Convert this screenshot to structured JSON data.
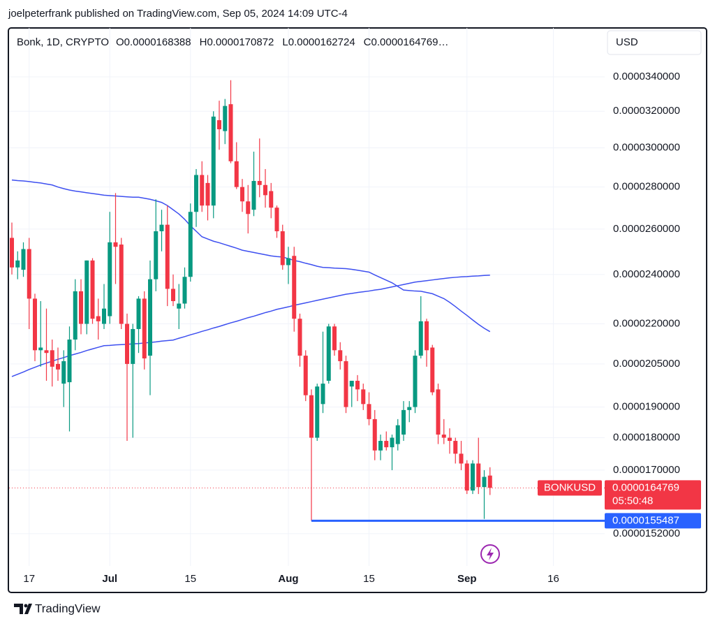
{
  "header": {
    "attribution": "joelpeterfrank published on TradingView.com, Sep 05, 2024 14:09 UTC-4",
    "logo": "TradingView"
  },
  "chart_data": {
    "type": "candlestick",
    "title": "Bonk, 1D, CRYPTO",
    "ohlc_prefixes": [
      "O",
      "H",
      "L",
      "C"
    ],
    "truncation": "…",
    "currency": "USD",
    "symbol": "BONKUSD",
    "countdown": "05:50:48",
    "up_color": "#089981",
    "down_color": "#f23645",
    "log_scale": true,
    "grid": true,
    "ylim": [
      1.436e-05,
      3.706e-05
    ],
    "yticks": [
      {
        "value": 3.4e-05,
        "label": "0.0000340000"
      },
      {
        "value": 3.2e-05,
        "label": "0.0000320000"
      },
      {
        "value": 3e-05,
        "label": "0.0000300000"
      },
      {
        "value": 2.8e-05,
        "label": "0.0000280000"
      },
      {
        "value": 2.6e-05,
        "label": "0.0000260000"
      },
      {
        "value": 2.4e-05,
        "label": "0.0000240000"
      },
      {
        "value": 2.2e-05,
        "label": "0.0000220000"
      },
      {
        "value": 2.05e-05,
        "label": "0.0000205000"
      },
      {
        "value": 1.9e-05,
        "label": "0.0000190000"
      },
      {
        "value": 1.8e-05,
        "label": "0.0000180000"
      },
      {
        "value": 1.7e-05,
        "label": "0.0000170000"
      },
      {
        "value": 1.52e-05,
        "label": "0.0000152000"
      }
    ],
    "categories": [
      null,
      null,
      null,
      "17",
      null,
      null,
      null,
      null,
      null,
      null,
      null,
      null,
      null,
      null,
      null,
      null,
      null,
      "Jul",
      null,
      null,
      null,
      null,
      null,
      null,
      null,
      null,
      null,
      null,
      null,
      null,
      null,
      "15",
      null,
      null,
      null,
      null,
      null,
      null,
      null,
      null,
      null,
      null,
      null,
      null,
      null,
      null,
      null,
      null,
      "Aug",
      null,
      null,
      null,
      null,
      null,
      null,
      null,
      null,
      null,
      null,
      null,
      null,
      null,
      "15",
      null,
      null,
      null,
      null,
      null,
      null,
      null,
      null,
      null,
      null,
      null,
      null,
      null,
      null,
      null,
      null,
      "Sep",
      null,
      null,
      null,
      null,
      null,
      null,
      null,
      null,
      null,
      null,
      null,
      null,
      null,
      null,
      "16"
    ],
    "open": [
      2.56e-05,
      2.43e-05,
      2.42e-05,
      2.51e-05,
      2.3e-05,
      2.1e-05,
      2.1e-05,
      2.1e-05,
      2.05e-05,
      1.98e-05,
      1.985e-05,
      2.14e-05,
      2.33e-05,
      2.2e-05,
      2.46e-05,
      2.23e-05,
      2.2e-05,
      2.23e-05,
      2.54e-05,
      2.53e-05,
      2.2e-05,
      2.05e-05,
      2.18e-05,
      2.3e-05,
      2.08e-05,
      2.38e-05,
      2.59e-05,
      2.62e-05,
      2.34e-05,
      2.26e-05,
      2.28e-05,
      2.39e-05,
      2.68e-05,
      2.86e-05,
      2.82e-05,
      2.71e-05,
      3.15e-05,
      3.09e-05,
      3.24e-05,
      2.93e-05,
      2.8e-05,
      2.73e-05,
      2.69e-05,
      2.83e-05,
      2.81e-05,
      2.78e-05,
      2.7e-05,
      2.59e-05,
      2.44e-05,
      2.48e-05,
      2.22e-05,
      2.08e-05,
      1.94e-05,
      1.8e-05,
      1.91e-05,
      1.99e-05,
      2.19e-05,
      2.1e-05,
      2.06e-05,
      1.97e-05,
      1.99e-05,
      1.96e-05,
      1.91e-05,
      1.86e-05,
      1.76e-05,
      1.79e-05,
      1.77e-05,
      1.78e-05,
      1.81e-05,
      1.89e-05,
      1.9e-05,
      2.08e-05,
      2.21e-05,
      2.11e-05,
      1.96e-05,
      1.81e-05,
      1.8e-05,
      1.79e-05,
      1.75e-05,
      1.72e-05,
      1.64e-05,
      1.72e-05,
      1.65e-05,
      1.68388e-05,
      null,
      null,
      null,
      null,
      null,
      null,
      null,
      null,
      null,
      null,
      null
    ],
    "high": [
      2.63e-05,
      2.5e-05,
      2.54e-05,
      2.56e-05,
      2.32e-05,
      2.29e-05,
      2.26e-05,
      2.14e-05,
      2.11e-05,
      2.1e-05,
      2.19e-05,
      2.38e-05,
      2.38e-05,
      2.46e-05,
      2.47e-05,
      2.3e-05,
      2.36e-05,
      2.68e-05,
      2.77e-05,
      2.56e-05,
      2.24e-05,
      2.2e-05,
      2.31e-05,
      2.33e-05,
      2.46e-05,
      2.74e-05,
      2.69e-05,
      2.71e-05,
      2.4e-05,
      2.36e-05,
      2.43e-05,
      2.72e-05,
      2.89e-05,
      2.93e-05,
      2.86e-05,
      3.2e-05,
      3.26e-05,
      3.27e-05,
      3.38e-05,
      3.03e-05,
      2.84e-05,
      2.81e-05,
      2.98e-05,
      3.05e-05,
      2.89e-05,
      2.82e-05,
      2.71e-05,
      2.62e-05,
      2.52e-05,
      2.52e-05,
      2.24e-05,
      2.1e-05,
      1.96e-05,
      1.98e-05,
      2.17e-05,
      2.2e-05,
      2.2e-05,
      2.13e-05,
      2.08e-05,
      1.99e-05,
      2.01e-05,
      1.98e-05,
      1.95e-05,
      1.89e-05,
      1.81e-05,
      1.82e-05,
      1.81e-05,
      1.86e-05,
      1.92e-05,
      1.92e-05,
      2.1e-05,
      2.31e-05,
      2.22e-05,
      2.12e-05,
      1.98e-05,
      1.86e-05,
      1.83e-05,
      1.8e-05,
      1.79e-05,
      1.73e-05,
      1.73e-05,
      1.8e-05,
      1.7e-05,
      1.70872e-05,
      null,
      null,
      null,
      null,
      null,
      null,
      null,
      null,
      null,
      null,
      null
    ],
    "low": [
      2.4e-05,
      2.38e-05,
      2.39e-05,
      2.18e-05,
      2.06e-05,
      2.04e-05,
      1.99e-05,
      1.97e-05,
      1.99e-05,
      1.9e-05,
      1.82e-05,
      2.1e-05,
      2.16e-05,
      2.16e-05,
      2.2e-05,
      2.14e-05,
      2.18e-05,
      2.2e-05,
      2.36e-05,
      2.18e-05,
      1.79e-05,
      1.8e-05,
      2.09e-05,
      2.03e-05,
      1.94e-05,
      2.33e-05,
      2.5e-05,
      2.27e-05,
      2.27e-05,
      2.18e-05,
      2.26e-05,
      2.37e-05,
      2.61e-05,
      2.68e-05,
      2.64e-05,
      2.65e-05,
      2.99e-05,
      3.02e-05,
      2.92e-05,
      2.79e-05,
      2.68e-05,
      2.58e-05,
      2.66e-05,
      2.75e-05,
      2.7e-05,
      2.65e-05,
      2.56e-05,
      2.42e-05,
      2.36e-05,
      2.17e-05,
      2.04e-05,
      1.92e-05,
      1.55487e-05,
      1.79e-05,
      1.88e-05,
      1.98e-05,
      2.08e-05,
      2.03e-05,
      1.88e-05,
      1.9e-05,
      1.92e-05,
      1.89e-05,
      1.84e-05,
      1.73e-05,
      1.73e-05,
      1.76e-05,
      1.7e-05,
      1.76e-05,
      1.79e-05,
      1.85e-05,
      1.88e-05,
      2.07e-05,
      2.04e-05,
      1.94e-05,
      1.78e-05,
      1.78e-05,
      1.75e-05,
      1.72e-05,
      1.7e-05,
      1.63e-05,
      1.63e-05,
      1.63e-05,
      1.56e-05,
      1.62724e-05,
      null,
      null,
      null,
      null,
      null,
      null,
      null,
      null,
      null,
      null,
      null
    ],
    "close": [
      2.43e-05,
      2.46e-05,
      2.51e-05,
      2.3e-05,
      2.1e-05,
      2.11e-05,
      2.09e-05,
      2.04e-05,
      2.03e-05,
      2.06e-05,
      2.14e-05,
      2.33e-05,
      2.2e-05,
      2.46e-05,
      2.22e-05,
      2.21e-05,
      2.26e-05,
      2.54e-05,
      2.52e-05,
      2.2e-05,
      2.05e-05,
      2.18e-05,
      2.3e-05,
      2.07e-05,
      2.38e-05,
      2.59e-05,
      2.62e-05,
      2.34e-05,
      2.29e-05,
      2.28e-05,
      2.39e-05,
      2.68e-05,
      2.86e-05,
      2.71e-05,
      2.71e-05,
      3.17e-05,
      3.1e-05,
      3.23e-05,
      2.93e-05,
      2.8e-05,
      2.73e-05,
      2.67e-05,
      2.83e-05,
      2.81e-05,
      2.76e-05,
      2.7e-05,
      2.59e-05,
      2.44e-05,
      2.47e-05,
      2.22e-05,
      2.08e-05,
      1.94e-05,
      1.8e-05,
      1.97e-05,
      1.98e-05,
      2.19e-05,
      2.1e-05,
      2.06e-05,
      1.9e-05,
      1.99e-05,
      1.96e-05,
      1.91e-05,
      1.86e-05,
      1.76e-05,
      1.79e-05,
      1.77e-05,
      1.8e-05,
      1.84e-05,
      1.89e-05,
      1.9e-05,
      2.08e-05,
      2.21e-05,
      2.1e-05,
      1.95e-05,
      1.81e-05,
      1.8e-05,
      1.79e-05,
      1.75e-05,
      1.72e-05,
      1.64e-05,
      1.72e-05,
      1.65e-05,
      1.68e-05,
      1.64769e-05,
      null,
      null,
      null,
      null,
      null,
      null,
      null,
      null,
      null,
      null,
      null
    ],
    "lines": [
      {
        "color": "#3d4ff0",
        "values": [
          2.835e-05,
          2.832e-05,
          2.83e-05,
          2.827e-05,
          2.823e-05,
          2.82e-05,
          2.815e-05,
          2.81e-05,
          2.8e-05,
          2.792e-05,
          2.785e-05,
          2.78e-05,
          2.776e-05,
          2.772e-05,
          2.768e-05,
          2.764e-05,
          2.76e-05,
          2.758e-05,
          2.756e-05,
          2.754e-05,
          2.752e-05,
          2.75e-05,
          2.75e-05,
          2.745e-05,
          2.74e-05,
          2.733e-05,
          2.725e-05,
          2.71e-05,
          2.69e-05,
          2.67e-05,
          2.645e-05,
          2.615e-05,
          2.59e-05,
          2.565e-05,
          2.555e-05,
          2.545e-05,
          2.538e-05,
          2.53e-05,
          2.522e-05,
          2.514e-05,
          2.505e-05,
          2.5e-05,
          2.495e-05,
          2.49e-05,
          2.485e-05,
          2.48e-05,
          2.477e-05,
          2.475e-05,
          2.468e-05,
          2.46e-05,
          2.455e-05,
          2.448e-05,
          2.442e-05,
          2.435e-05,
          2.43e-05,
          2.429e-05,
          2.427e-05,
          2.426e-05,
          2.425e-05,
          2.422e-05,
          2.418e-05,
          2.414e-05,
          2.41e-05,
          2.398e-05,
          2.387e-05,
          2.376e-05,
          2.365e-05,
          2.35e-05,
          2.335e-05,
          2.333e-05,
          2.331e-05,
          2.33e-05,
          2.325e-05,
          2.32e-05,
          2.31e-05,
          2.3e-05,
          2.285e-05,
          2.268e-05,
          2.25e-05,
          2.233e-05,
          2.215e-05,
          2.198e-05,
          2.183e-05,
          2.17e-05,
          null,
          null,
          null,
          null,
          null,
          null,
          null,
          null,
          null,
          null,
          null
        ]
      },
      {
        "color": "#3d4ff0",
        "values": [
          2.005e-05,
          2.013e-05,
          2.021e-05,
          2.03e-05,
          2.038e-05,
          2.046e-05,
          2.053e-05,
          2.06e-05,
          2.067e-05,
          2.073e-05,
          2.08e-05,
          2.086e-05,
          2.092e-05,
          2.099e-05,
          2.105e-05,
          2.111e-05,
          2.117e-05,
          2.118e-05,
          2.12e-05,
          2.121e-05,
          2.122e-05,
          2.124e-05,
          2.125e-05,
          2.127e-05,
          2.129e-05,
          2.131e-05,
          2.134e-05,
          2.136e-05,
          2.138e-05,
          2.145e-05,
          2.151e-05,
          2.158e-05,
          2.164e-05,
          2.171e-05,
          2.177e-05,
          2.184e-05,
          2.19e-05,
          2.197e-05,
          2.204e-05,
          2.21e-05,
          2.217e-05,
          2.224e-05,
          2.23e-05,
          2.237e-05,
          2.244e-05,
          2.25e-05,
          2.257e-05,
          2.262e-05,
          2.267e-05,
          2.273e-05,
          2.278e-05,
          2.283e-05,
          2.288e-05,
          2.293e-05,
          2.298e-05,
          2.303e-05,
          2.308e-05,
          2.313e-05,
          2.318e-05,
          2.321e-05,
          2.325e-05,
          2.328e-05,
          2.331e-05,
          2.335e-05,
          2.338e-05,
          2.343e-05,
          2.348e-05,
          2.353e-05,
          2.358e-05,
          2.363e-05,
          2.368e-05,
          2.371e-05,
          2.374e-05,
          2.377e-05,
          2.38e-05,
          2.383e-05,
          2.386e-05,
          2.388e-05,
          2.39e-05,
          2.391e-05,
          2.393e-05,
          2.394e-05,
          2.396e-05,
          2.397e-05,
          null,
          null,
          null,
          null,
          null,
          null,
          null,
          null,
          null,
          null,
          null
        ]
      }
    ],
    "hline": {
      "value": 1.55487e-05,
      "color": "#2962ff"
    }
  }
}
